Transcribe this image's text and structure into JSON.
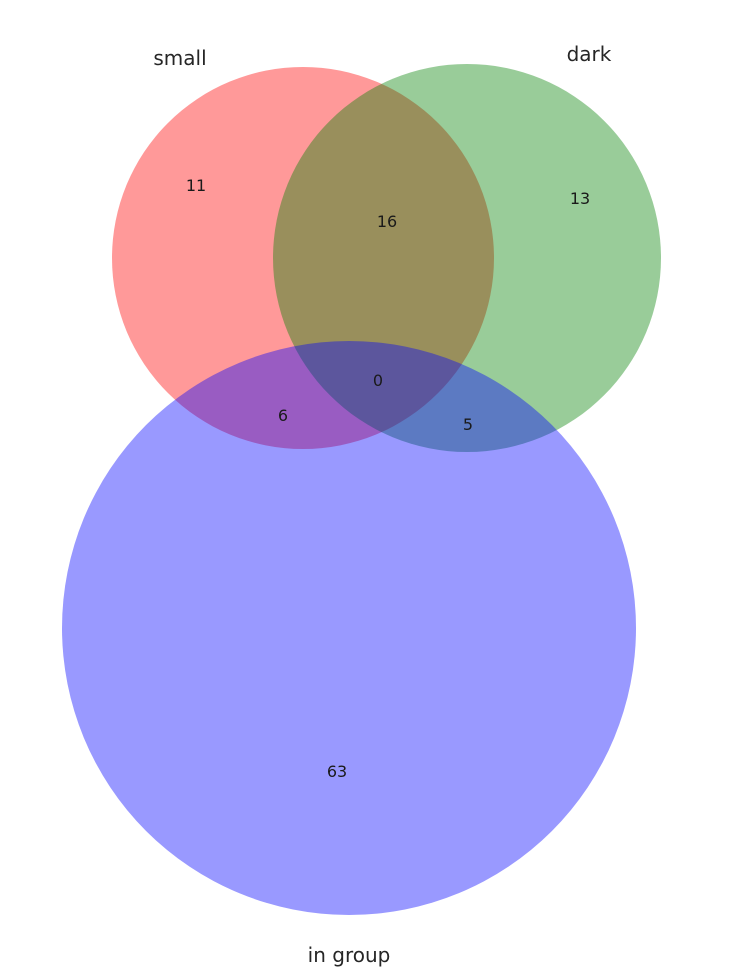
{
  "diagram": {
    "type": "venn3",
    "sets": [
      {
        "name": "small",
        "color": "#ff0000"
      },
      {
        "name": "dark",
        "color": "#008000"
      },
      {
        "name": "in group",
        "color": "#0000ff"
      }
    ],
    "regions": [
      {
        "sets": [
          "small"
        ],
        "count": "11"
      },
      {
        "sets": [
          "dark"
        ],
        "count": "13"
      },
      {
        "sets": [
          "small",
          "dark"
        ],
        "count": "16"
      },
      {
        "sets": [
          "small",
          "dark",
          "in group"
        ],
        "count": "0"
      },
      {
        "sets": [
          "small",
          "in group"
        ],
        "count": "6"
      },
      {
        "sets": [
          "dark",
          "in group"
        ],
        "count": "5"
      },
      {
        "sets": [
          "in group"
        ],
        "count": "63"
      }
    ],
    "fill_opacity": 0.4
  }
}
